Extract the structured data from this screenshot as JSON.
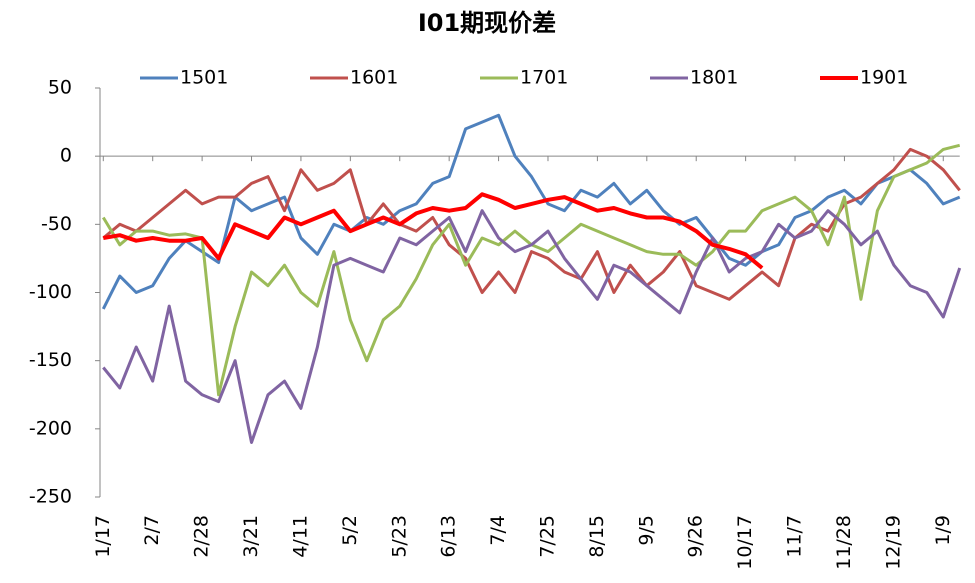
{
  "chart_data": {
    "type": "line",
    "title": "I01期现价差",
    "categories": [
      "1/17",
      null,
      null,
      "2/7",
      null,
      null,
      "2/28",
      null,
      null,
      "3/21",
      null,
      null,
      "4/11",
      null,
      null,
      "5/2",
      null,
      null,
      "5/23",
      null,
      null,
      "6/13",
      null,
      null,
      "7/4",
      null,
      null,
      "7/25",
      null,
      null,
      "8/15",
      null,
      null,
      "9/5",
      null,
      null,
      "9/26",
      null,
      null,
      "10/17",
      null,
      null,
      "11/7",
      null,
      null,
      "11/28",
      null,
      null,
      "12/19",
      null,
      null,
      "1/9",
      null
    ],
    "ylim": [
      -250,
      50
    ],
    "yticks": [
      -250,
      -200,
      -150,
      -100,
      -50,
      0,
      50
    ],
    "series": [
      {
        "name": "1501",
        "color": "#4f81bd",
        "width": 3,
        "values": [
          -112,
          -88,
          -100,
          -95,
          -75,
          -62,
          -70,
          -78,
          -30,
          -40,
          -35,
          -30,
          -60,
          -72,
          -50,
          -55,
          -45,
          -50,
          -40,
          -35,
          -20,
          -15,
          20,
          25,
          30,
          0,
          -15,
          -35,
          -40,
          -25,
          -30,
          -20,
          -35,
          -25,
          -40,
          -50,
          -45,
          -60,
          -75,
          -80,
          -70,
          -65,
          -45,
          -40,
          -30,
          -25,
          -35,
          -20,
          -15,
          -10,
          -20,
          -35,
          -30
        ]
      },
      {
        "name": "1601",
        "color": "#c0504d",
        "width": 3,
        "values": [
          -60,
          -50,
          -55,
          -45,
          -35,
          -25,
          -35,
          -30,
          -30,
          -20,
          -15,
          -40,
          -10,
          -25,
          -20,
          -10,
          -50,
          -35,
          -50,
          -55,
          -45,
          -65,
          -75,
          -100,
          -85,
          -100,
          -70,
          -75,
          -85,
          -90,
          -70,
          -100,
          -80,
          -95,
          -85,
          -70,
          -95,
          -100,
          -105,
          -95,
          -85,
          -95,
          -60,
          -50,
          -55,
          -35,
          -30,
          -20,
          -10,
          5,
          0,
          -10,
          -25
        ]
      },
      {
        "name": "1701",
        "color": "#9bbb59",
        "width": 3,
        "values": [
          -45,
          -65,
          -55,
          -55,
          -58,
          -57,
          -60,
          -175,
          -125,
          -85,
          -95,
          -80,
          -100,
          -110,
          -70,
          -120,
          -150,
          -120,
          -110,
          -90,
          -65,
          -50,
          -80,
          -60,
          -65,
          -55,
          -65,
          -70,
          -60,
          -50,
          -55,
          -60,
          -65,
          -70,
          -72,
          -72,
          -80,
          -70,
          -55,
          -55,
          -40,
          -35,
          -30,
          -40,
          -65,
          -30,
          -105,
          -40,
          -15,
          -10,
          -5,
          5,
          8
        ]
      },
      {
        "name": "1801",
        "color": "#8064a2",
        "width": 3,
        "values": [
          -155,
          -170,
          -140,
          -165,
          -110,
          -165,
          -175,
          -180,
          -150,
          -210,
          -175,
          -165,
          -185,
          -140,
          -80,
          -75,
          -80,
          -85,
          -60,
          -65,
          -55,
          -45,
          -70,
          -40,
          -60,
          -70,
          -65,
          -55,
          -75,
          -90,
          -105,
          -80,
          -85,
          -95,
          -105,
          -115,
          -85,
          -60,
          -85,
          -75,
          -70,
          -50,
          -60,
          -55,
          -40,
          -50,
          -65,
          -55,
          -80,
          -95,
          -100,
          -118,
          -82
        ]
      },
      {
        "name": "1901",
        "color": "#ff0000",
        "width": 4,
        "values": [
          -60,
          -58,
          -62,
          -60,
          -62,
          -62,
          -60,
          -75,
          -50,
          -55,
          -60,
          -45,
          -50,
          -45,
          -40,
          -55,
          -50,
          -45,
          -50,
          -42,
          -38,
          -40,
          -38,
          -28,
          -32,
          -38,
          -35,
          -32,
          -30,
          -35,
          -40,
          -38,
          -42,
          -45,
          -45,
          -48,
          -55,
          -65,
          -68,
          -72,
          -82,
          null,
          null,
          null,
          null,
          null,
          null,
          null,
          null,
          null,
          null,
          null,
          null
        ]
      }
    ]
  }
}
